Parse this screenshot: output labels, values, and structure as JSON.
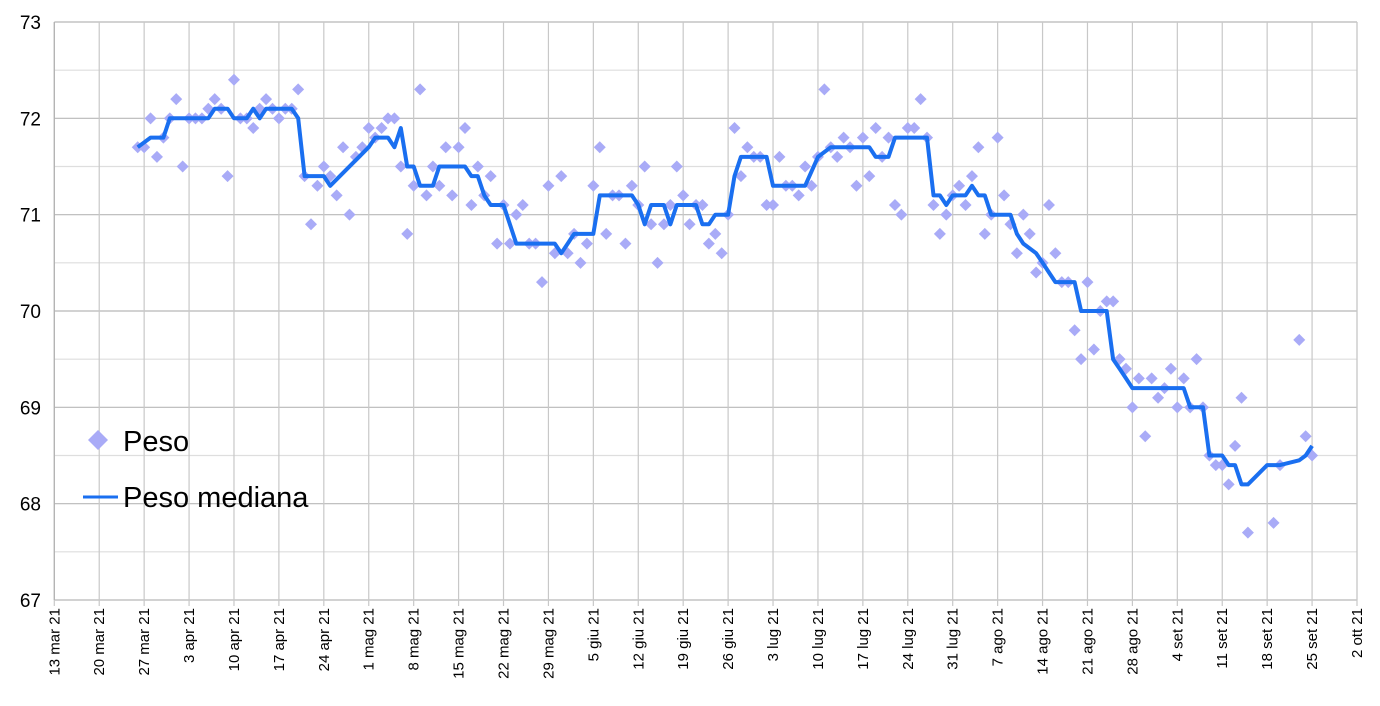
{
  "chart_data": {
    "type": "line+scatter",
    "title": "",
    "xlabel": "",
    "ylabel": "",
    "ylim": [
      67,
      73
    ],
    "yticks": [
      "67",
      "68",
      "69",
      "70",
      "71",
      "72",
      "73"
    ],
    "x_start_label": "13 mar 21",
    "x_unit": "days since 13 mar 21",
    "xlim_days": [
      0,
      203
    ],
    "xtick_labels": [
      "13 mar 21",
      "20 mar 21",
      "27 mar 21",
      "3 apr 21",
      "10 apr 21",
      "17 apr 21",
      "24 apr 21",
      "1 mag 21",
      "8 mag 21",
      "15 mag 21",
      "22 mag 21",
      "29 mag 21",
      "5 giu 21",
      "12 giu 21",
      "19 giu 21",
      "26 giu 21",
      "3 lug 21",
      "10 lug 21",
      "17 lug 21",
      "24 lug 21",
      "31 lug 21",
      "7 ago 21",
      "14 ago 21",
      "21 ago 21",
      "28 ago 21",
      "4 set 21",
      "11 set 21",
      "18 set 21",
      "25 set 21",
      "2 ott 21"
    ],
    "grid": true,
    "legend_position": "bottom-left",
    "colors": {
      "peso": "#a9abf7",
      "mediana": "#1a6ff0",
      "grid": "#c8c8c8"
    },
    "series": [
      {
        "name": "Peso",
        "kind": "scatter",
        "marker": "diamond",
        "points": [
          [
            13,
            71.7
          ],
          [
            14,
            71.7
          ],
          [
            15,
            72.0
          ],
          [
            16,
            71.6
          ],
          [
            17,
            71.8
          ],
          [
            18,
            72.0
          ],
          [
            19,
            72.2
          ],
          [
            20,
            71.5
          ],
          [
            21,
            72.0
          ],
          [
            22,
            72.0
          ],
          [
            23,
            72.0
          ],
          [
            24,
            72.1
          ],
          [
            25,
            72.2
          ],
          [
            26,
            72.1
          ],
          [
            27,
            71.4
          ],
          [
            28,
            72.4
          ],
          [
            29,
            72.0
          ],
          [
            30,
            72.0
          ],
          [
            31,
            71.9
          ],
          [
            32,
            72.1
          ],
          [
            33,
            72.2
          ],
          [
            34,
            72.1
          ],
          [
            35,
            72.0
          ],
          [
            36,
            72.1
          ],
          [
            37,
            72.1
          ],
          [
            38,
            72.3
          ],
          [
            39,
            71.4
          ],
          [
            40,
            70.9
          ],
          [
            41,
            71.3
          ],
          [
            42,
            71.5
          ],
          [
            43,
            71.4
          ],
          [
            44,
            71.2
          ],
          [
            45,
            71.7
          ],
          [
            46,
            71.0
          ],
          [
            47,
            71.6
          ],
          [
            48,
            71.7
          ],
          [
            49,
            71.9
          ],
          [
            50,
            71.8
          ],
          [
            51,
            71.9
          ],
          [
            52,
            72.0
          ],
          [
            53,
            72.0
          ],
          [
            54,
            71.5
          ],
          [
            55,
            70.8
          ],
          [
            56,
            71.3
          ],
          [
            57,
            72.3
          ],
          [
            58,
            71.2
          ],
          [
            59,
            71.5
          ],
          [
            60,
            71.3
          ],
          [
            61,
            71.7
          ],
          [
            62,
            71.2
          ],
          [
            63,
            71.7
          ],
          [
            64,
            71.9
          ],
          [
            65,
            71.1
          ],
          [
            66,
            71.5
          ],
          [
            67,
            71.2
          ],
          [
            68,
            71.4
          ],
          [
            69,
            70.7
          ],
          [
            70,
            71.1
          ],
          [
            71,
            70.7
          ],
          [
            72,
            71.0
          ],
          [
            73,
            71.1
          ],
          [
            74,
            70.7
          ],
          [
            75,
            70.7
          ],
          [
            76,
            70.3
          ],
          [
            77,
            71.3
          ],
          [
            78,
            70.6
          ],
          [
            79,
            71.4
          ],
          [
            80,
            70.6
          ],
          [
            81,
            70.8
          ],
          [
            82,
            70.5
          ],
          [
            83,
            70.7
          ],
          [
            84,
            71.3
          ],
          [
            85,
            71.7
          ],
          [
            86,
            70.8
          ],
          [
            87,
            71.2
          ],
          [
            88,
            71.2
          ],
          [
            89,
            70.7
          ],
          [
            90,
            71.3
          ],
          [
            91,
            71.1
          ],
          [
            92,
            71.5
          ],
          [
            93,
            70.9
          ],
          [
            94,
            70.5
          ],
          [
            95,
            70.9
          ],
          [
            96,
            71.1
          ],
          [
            97,
            71.5
          ],
          [
            98,
            71.2
          ],
          [
            99,
            70.9
          ],
          [
            100,
            71.1
          ],
          [
            101,
            71.1
          ],
          [
            102,
            70.7
          ],
          [
            103,
            70.8
          ],
          [
            104,
            70.6
          ],
          [
            105,
            71.0
          ],
          [
            106,
            71.9
          ],
          [
            107,
            71.4
          ],
          [
            108,
            71.7
          ],
          [
            109,
            71.6
          ],
          [
            110,
            71.6
          ],
          [
            111,
            71.1
          ],
          [
            112,
            71.1
          ],
          [
            113,
            71.6
          ],
          [
            114,
            71.3
          ],
          [
            115,
            71.3
          ],
          [
            116,
            71.2
          ],
          [
            117,
            71.5
          ],
          [
            118,
            71.3
          ],
          [
            119,
            71.6
          ],
          [
            120,
            72.3
          ],
          [
            121,
            71.7
          ],
          [
            122,
            71.6
          ],
          [
            123,
            71.8
          ],
          [
            124,
            71.7
          ],
          [
            125,
            71.3
          ],
          [
            126,
            71.8
          ],
          [
            127,
            71.4
          ],
          [
            128,
            71.9
          ],
          [
            129,
            71.6
          ],
          [
            130,
            71.8
          ],
          [
            131,
            71.1
          ],
          [
            132,
            71.0
          ],
          [
            133,
            71.9
          ],
          [
            134,
            71.9
          ],
          [
            135,
            72.2
          ],
          [
            136,
            71.8
          ],
          [
            137,
            71.1
          ],
          [
            138,
            70.8
          ],
          [
            139,
            71.0
          ],
          [
            140,
            71.2
          ],
          [
            141,
            71.3
          ],
          [
            142,
            71.1
          ],
          [
            143,
            71.4
          ],
          [
            144,
            71.7
          ],
          [
            145,
            70.8
          ],
          [
            146,
            71.0
          ],
          [
            147,
            71.8
          ],
          [
            148,
            71.2
          ],
          [
            149,
            70.9
          ],
          [
            150,
            70.6
          ],
          [
            151,
            71.0
          ],
          [
            152,
            70.8
          ],
          [
            153,
            70.4
          ],
          [
            154,
            70.5
          ],
          [
            155,
            71.1
          ],
          [
            156,
            70.6
          ],
          [
            157,
            70.3
          ],
          [
            158,
            70.3
          ],
          [
            159,
            69.8
          ],
          [
            160,
            69.5
          ],
          [
            161,
            70.3
          ],
          [
            162,
            69.6
          ],
          [
            163,
            70.0
          ],
          [
            164,
            70.1
          ],
          [
            165,
            70.1
          ],
          [
            166,
            69.5
          ],
          [
            167,
            69.4
          ],
          [
            168,
            69.0
          ],
          [
            169,
            69.3
          ],
          [
            170,
            68.7
          ],
          [
            171,
            69.3
          ],
          [
            172,
            69.1
          ],
          [
            173,
            69.2
          ],
          [
            174,
            69.4
          ],
          [
            175,
            69.0
          ],
          [
            176,
            69.3
          ],
          [
            177,
            69.0
          ],
          [
            178,
            69.5
          ],
          [
            179,
            69.0
          ],
          [
            180,
            68.5
          ],
          [
            181,
            68.4
          ],
          [
            182,
            68.4
          ],
          [
            183,
            68.2
          ],
          [
            184,
            68.6
          ],
          [
            185,
            69.1
          ],
          [
            186,
            67.7
          ],
          [
            190,
            67.8
          ],
          [
            191,
            68.4
          ],
          [
            194,
            69.7
          ],
          [
            195,
            68.7
          ],
          [
            196,
            68.5
          ]
        ]
      },
      {
        "name": "Peso mediana",
        "kind": "line",
        "points": [
          [
            13,
            71.7
          ],
          [
            15,
            71.8
          ],
          [
            17,
            71.8
          ],
          [
            18,
            72.0
          ],
          [
            24,
            72.0
          ],
          [
            25,
            72.1
          ],
          [
            27,
            72.1
          ],
          [
            28,
            72.0
          ],
          [
            30,
            72.0
          ],
          [
            31,
            72.1
          ],
          [
            32,
            72.0
          ],
          [
            33,
            72.1
          ],
          [
            37,
            72.1
          ],
          [
            38,
            72.0
          ],
          [
            39,
            71.4
          ],
          [
            42,
            71.4
          ],
          [
            43,
            71.3
          ],
          [
            49,
            71.7
          ],
          [
            50,
            71.8
          ],
          [
            52,
            71.8
          ],
          [
            53,
            71.7
          ],
          [
            54,
            71.9
          ],
          [
            55,
            71.5
          ],
          [
            56,
            71.5
          ],
          [
            57,
            71.3
          ],
          [
            59,
            71.3
          ],
          [
            60,
            71.5
          ],
          [
            64,
            71.5
          ],
          [
            65,
            71.4
          ],
          [
            66,
            71.4
          ],
          [
            67,
            71.2
          ],
          [
            68,
            71.1
          ],
          [
            70,
            71.1
          ],
          [
            72,
            70.7
          ],
          [
            78,
            70.7
          ],
          [
            79,
            70.6
          ],
          [
            80,
            70.7
          ],
          [
            81,
            70.8
          ],
          [
            84,
            70.8
          ],
          [
            85,
            71.2
          ],
          [
            90,
            71.2
          ],
          [
            91,
            71.1
          ],
          [
            92,
            70.9
          ],
          [
            93,
            71.1
          ],
          [
            95,
            71.1
          ],
          [
            96,
            70.9
          ],
          [
            97,
            71.1
          ],
          [
            100,
            71.1
          ],
          [
            101,
            70.9
          ],
          [
            102,
            70.9
          ],
          [
            103,
            71.0
          ],
          [
            105,
            71.0
          ],
          [
            106,
            71.4
          ],
          [
            107,
            71.6
          ],
          [
            111,
            71.6
          ],
          [
            112,
            71.3
          ],
          [
            117,
            71.3
          ],
          [
            119,
            71.6
          ],
          [
            121,
            71.7
          ],
          [
            127,
            71.7
          ],
          [
            128,
            71.6
          ],
          [
            130,
            71.6
          ],
          [
            131,
            71.8
          ],
          [
            136,
            71.8
          ],
          [
            137,
            71.2
          ],
          [
            138,
            71.2
          ],
          [
            139,
            71.1
          ],
          [
            140,
            71.2
          ],
          [
            142,
            71.2
          ],
          [
            143,
            71.3
          ],
          [
            144,
            71.2
          ],
          [
            145,
            71.2
          ],
          [
            146,
            71.0
          ],
          [
            149,
            71.0
          ],
          [
            150,
            70.8
          ],
          [
            151,
            70.7
          ],
          [
            153,
            70.6
          ],
          [
            154,
            70.5
          ],
          [
            155,
            70.4
          ],
          [
            156,
            70.3
          ],
          [
            159,
            70.3
          ],
          [
            160,
            70.0
          ],
          [
            164,
            70.0
          ],
          [
            165,
            69.5
          ],
          [
            166,
            69.4
          ],
          [
            167,
            69.3
          ],
          [
            168,
            69.2
          ],
          [
            176,
            69.2
          ],
          [
            177,
            69.0
          ],
          [
            179,
            69.0
          ],
          [
            180,
            68.5
          ],
          [
            182,
            68.5
          ],
          [
            183,
            68.4
          ],
          [
            184,
            68.4
          ],
          [
            185,
            68.2
          ],
          [
            186,
            68.2
          ],
          [
            189,
            68.4
          ],
          [
            191,
            68.4
          ],
          [
            194,
            68.45
          ],
          [
            195,
            68.5
          ],
          [
            196,
            68.6
          ]
        ]
      }
    ]
  },
  "legend": {
    "items": [
      "Peso",
      "Peso mediana"
    ]
  }
}
